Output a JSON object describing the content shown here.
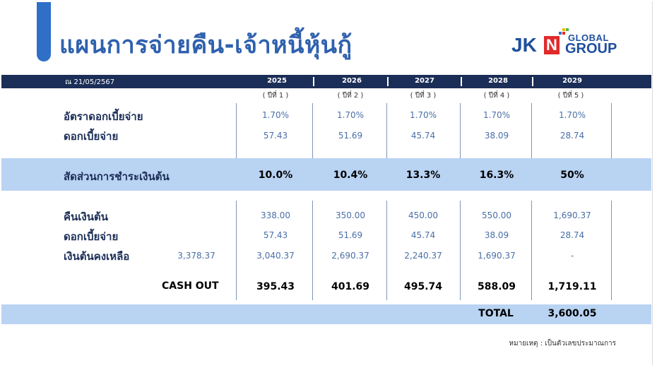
{
  "title": "แผนการจ่ายคืน-เจ้าหนี้หุ้นกู้",
  "logo": {
    "jk": "JK",
    "n": "N",
    "global": "GLOBAL",
    "group": "GROUP"
  },
  "header": {
    "date": "ณ 21/05/2567",
    "years": [
      "2025",
      "2026",
      "2027",
      "2028",
      "2029"
    ]
  },
  "year_numbers": [
    "( ปีที่ 1 )",
    "( ปีที่ 2 )",
    "( ปีที่ 3 )",
    "( ปีที่ 4 )",
    "( ปีที่ 5 )"
  ],
  "rows": {
    "interest_rate": {
      "label": "อัตราดอกเบี้ยจ่าย",
      "values": [
        "1.70%",
        "1.70%",
        "1.70%",
        "1.70%",
        "1.70%"
      ]
    },
    "interest_1": {
      "label": "ดอกเบี้ยจ่าย",
      "values": [
        "57.43",
        "51.69",
        "45.74",
        "38.09",
        "28.74"
      ]
    },
    "principal_ratio": {
      "label": "สัดส่วนการชำระเงินต้น",
      "values": [
        "10.0%",
        "10.4%",
        "13.3%",
        "16.3%",
        "50%"
      ]
    },
    "principal_repay": {
      "label": "คืนเงินต้น",
      "values": [
        "338.00",
        "350.00",
        "450.00",
        "550.00",
        "1,690.37"
      ]
    },
    "interest_2": {
      "label": "ดอกเบี้ยจ่าย",
      "values": [
        "57.43",
        "51.69",
        "45.74",
        "38.09",
        "28.74"
      ]
    },
    "remaining": {
      "label": "เงินต้นคงเหลือ",
      "initial": "3,378.37",
      "values": [
        "3,040.37",
        "2,690.37",
        "2,240.37",
        "1,690.37",
        "-"
      ]
    },
    "cash_out": {
      "label": "CASH OUT",
      "values": [
        "395.43",
        "401.69",
        "495.74",
        "588.09",
        "1,719.11"
      ]
    }
  },
  "total": {
    "label": "TOTAL",
    "value": "3,600.05"
  },
  "note": "หมายเหตุ : เป็นตัวเลขประมาณการ",
  "colors": {
    "navy": "#1b2e57",
    "band": "#b9d3f3",
    "title_blue": "#2f61ae",
    "logo_red": "#e12a2a"
  }
}
